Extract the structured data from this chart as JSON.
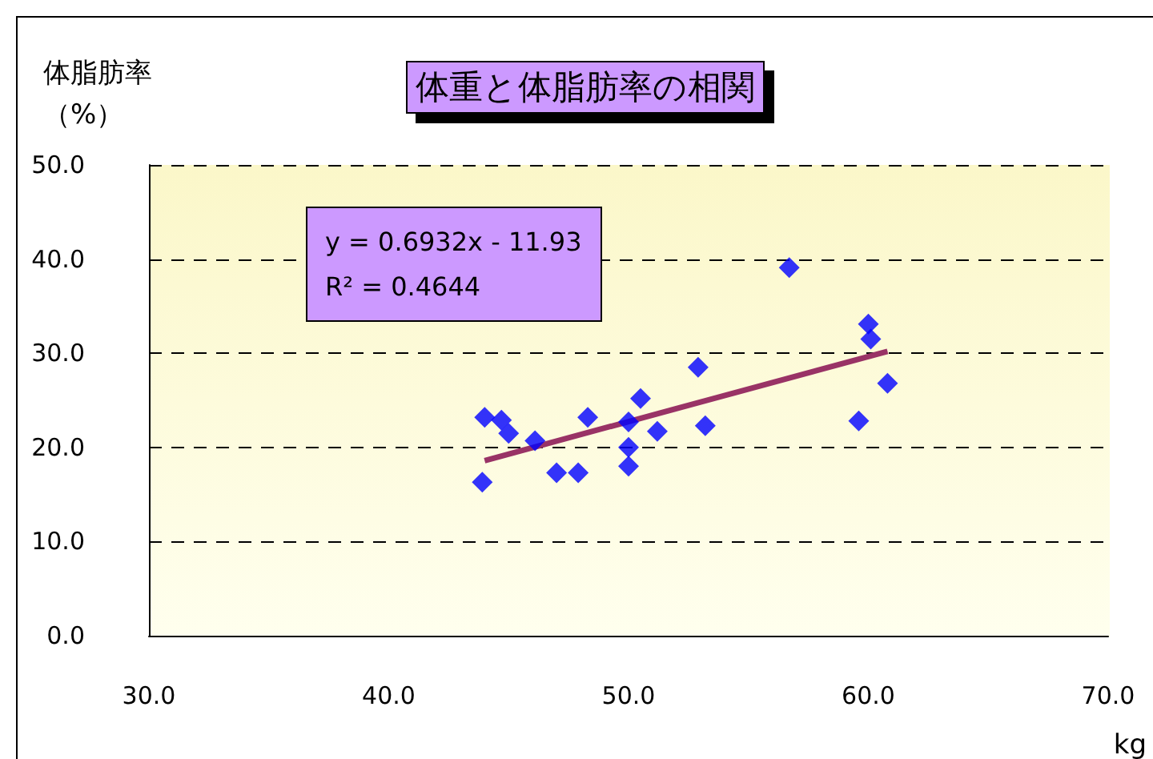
{
  "chart_data": {
    "type": "scatter",
    "title": "体重と体脂肪率の相関",
    "xlabel": "kg",
    "ylabel": "体脂肪率（%）",
    "annotations": [
      "y = 0.6932x - 11.93",
      "R² = 0.4644"
    ],
    "series": [
      {
        "color": "#0000ff",
        "marker": "diamond",
        "x": [
          44.0,
          44.7,
          45.0,
          46.1,
          43.9,
          47.0,
          47.9,
          48.3,
          50.0,
          50.0,
          50.0,
          50.5,
          51.2,
          52.9,
          53.2,
          56.7,
          60.0,
          60.1,
          59.6,
          60.8
        ],
        "values": [
          23.2,
          22.9,
          21.5,
          20.7,
          16.3,
          17.3,
          17.3,
          23.2,
          22.7,
          20.0,
          18.0,
          25.2,
          21.7,
          28.5,
          22.3,
          39.1,
          33.1,
          31.5,
          22.8,
          26.8
        ]
      },
      {
        "type": "line",
        "color": "#993366",
        "marker": "none",
        "x": [
          44.0,
          60.8
        ],
        "values": [
          18.6,
          30.2
        ]
      }
    ],
    "xlim": [
      30,
      70
    ],
    "xticks": [
      {
        "value": 30,
        "label": "30.0"
      },
      {
        "value": 40,
        "label": "40.0"
      },
      {
        "value": 50,
        "label": "50.0"
      },
      {
        "value": 60,
        "label": "60.0"
      },
      {
        "value": 70,
        "label": "70.0"
      }
    ],
    "ylim": [
      0,
      50
    ],
    "yticks": [
      {
        "value": 0,
        "label": "0.0"
      },
      {
        "value": 10,
        "label": "10.0"
      },
      {
        "value": 20,
        "label": "20.0"
      },
      {
        "value": 30,
        "label": "30.0"
      },
      {
        "value": 40,
        "label": "40.0"
      },
      {
        "value": 50,
        "label": "50.0"
      }
    ],
    "grid": "y"
  }
}
